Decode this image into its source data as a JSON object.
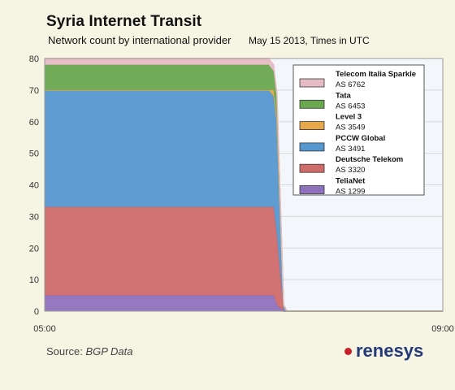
{
  "header": {
    "title": "Syria Internet Transit",
    "subtitle": "Network count by international provider",
    "date": "May 15 2013, Times in UTC"
  },
  "footer": {
    "source_prefix": "Source:",
    "source_name": "BGP Data",
    "logo_text": "renesys",
    "logo_dot_color": "#c8202a",
    "logo_text_color": "#223a7a"
  },
  "chart_data": {
    "type": "area",
    "stacked": true,
    "x_ticks": [
      "05:00",
      "09:00"
    ],
    "xlim": [
      "05:00",
      "09:00"
    ],
    "ylim": [
      0,
      80
    ],
    "y_ticks": [
      0,
      10,
      20,
      30,
      40,
      50,
      60,
      70,
      80
    ],
    "grid": "horizontal",
    "legend_position": "top-right",
    "x": [
      "05:00",
      "07:15",
      "07:18",
      "07:20",
      "07:24",
      "07:26",
      "09:00"
    ],
    "series": [
      {
        "name": "TeliaNet",
        "as": "AS 1299",
        "color": "#8e72bd",
        "values": [
          5,
          5,
          5,
          2,
          0,
          0,
          0
        ]
      },
      {
        "name": "Deutsche Telekom",
        "as": "AS 3320",
        "color": "#cf6b6b",
        "values": [
          28,
          28,
          28,
          22,
          0,
          0,
          0
        ]
      },
      {
        "name": "PCCW Global",
        "as": "AS 3491",
        "color": "#5597cf",
        "values": [
          37,
          37,
          35,
          35,
          2,
          0,
          0
        ]
      },
      {
        "name": "Level 3",
        "as": "AS 3549",
        "color": "#e6a84a",
        "values": [
          0,
          0,
          2,
          2,
          0,
          0,
          0
        ]
      },
      {
        "name": "Tata",
        "as": "AS 6453",
        "color": "#6aa84f",
        "values": [
          8,
          8,
          6,
          6,
          0,
          0,
          0
        ]
      },
      {
        "name": "Telecom Italia Sparkle",
        "as": "AS 6762",
        "color": "#e6bcc4",
        "values": [
          2,
          2,
          2,
          2,
          0,
          0,
          0
        ]
      }
    ]
  }
}
